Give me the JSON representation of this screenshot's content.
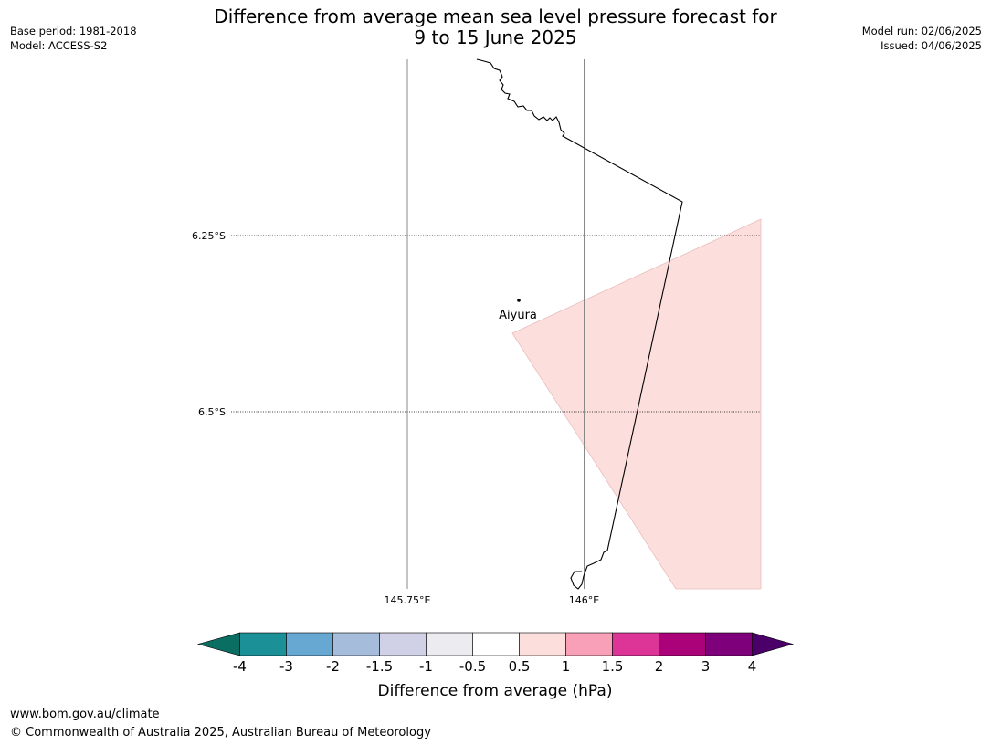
{
  "header": {
    "base_period": "Base period: 1981-2018",
    "model": "Model: ACCESS-S2",
    "model_run": "Model run: 02/06/2025",
    "issued": "Issued: 04/06/2025",
    "title_line1": "Difference from average mean sea level pressure forecast for",
    "title_line2": "9 to 15 June 2025"
  },
  "map": {
    "lat_labels": [
      "6.25°S",
      "6.5°S"
    ],
    "lon_labels": [
      "145.75°E",
      "146°E"
    ],
    "place": {
      "name": "Aiyura"
    },
    "shaded_category": "0.5 to 1",
    "shade_color": "#fcdfdd"
  },
  "legend": {
    "title": "Difference from average (hPa)",
    "tick_labels": [
      "-4",
      "-3",
      "-2",
      "-1.5",
      "-1",
      "-0.5",
      "0.5",
      "1",
      "1.5",
      "2",
      "3",
      "4"
    ],
    "below_min_color": "#0a6e62",
    "above_max_color": "#4a0068",
    "bins": [
      "#1b9097",
      "#66a8d1",
      "#a6bcdb",
      "#d0d0e6",
      "#ecebef",
      "#ffffff",
      "#fcdfdd",
      "#f7a0b8",
      "#dc3497",
      "#ab0179",
      "#7e007a"
    ]
  },
  "footer": {
    "url": "www.bom.gov.au/climate",
    "copyright": "© Commonwealth of Australia 2025, Australian Bureau of Meteorology"
  }
}
